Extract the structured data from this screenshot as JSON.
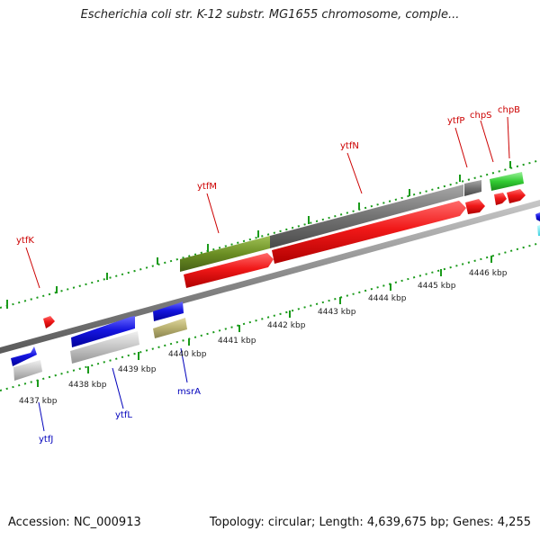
{
  "title": "Escherichia coli str. K-12 substr. MG1655 chromosome, comple...",
  "footer": {
    "accession": "Accession: NC_000913",
    "summary": "Topology: circular; Length: 4,639,675 bp; Genes: 4,255"
  },
  "colors": {
    "top_strand_label": "#cc0000",
    "bottom_strand_label": "#0000bb",
    "tick_green": "#1a9a1a",
    "backbone": "#888888",
    "red_gene": "#ee1111",
    "blue_gene": "#1111dd",
    "gray_feature": "#707070",
    "olive_feature": "#6b8e23",
    "khaki_feature": "#b8b070",
    "silver_feature": "#c4c4c4",
    "green_feature": "#33cc33"
  },
  "scale_labels": [
    "4437 kbp",
    "4438 kbp",
    "4439 kbp",
    "4440 kbp",
    "4441 kbp",
    "4442 kbp",
    "4443 kbp",
    "4444 kbp",
    "4445 kbp",
    "4446 kbp"
  ],
  "top_genes": [
    "ytfK",
    "ytfM",
    "ytfN",
    "ytfP",
    "chpS",
    "chpB"
  ],
  "bottom_genes": [
    "ytfJ",
    "ytfL",
    "msrA"
  ]
}
